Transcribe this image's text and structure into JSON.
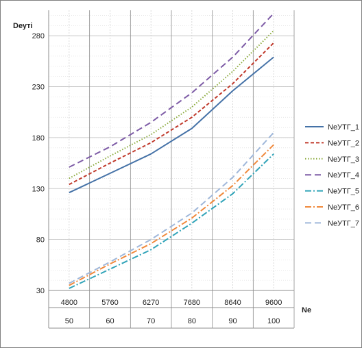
{
  "chart_data": {
    "type": "line",
    "title": "",
    "ylabel": "Dеуті",
    "xlabel": "Ne",
    "x": [
      4800,
      5760,
      6270,
      7680,
      8640,
      9600
    ],
    "x_tick_labels": [
      "4800",
      "5760",
      "6270",
      "7680",
      "8640",
      "9600"
    ],
    "x_secondary_tick_labels": [
      "50",
      "60",
      "70",
      "80",
      "90",
      "100"
    ],
    "ylim": [
      30,
      305
    ],
    "y_ticks": [
      30,
      80,
      130,
      180,
      230,
      280
    ],
    "y_tick_labels": [
      "30",
      "80",
      "130",
      "180",
      "230",
      "280"
    ],
    "grid": true,
    "legend_position": "right",
    "series": [
      {
        "name": "NeУТГ_1",
        "color": "#4572a7",
        "dash": "solid",
        "values": [
          126,
          145,
          164,
          189,
          226,
          259
        ]
      },
      {
        "name": "NeУТГ_2",
        "color": "#c0392b",
        "dash": "dash",
        "values": [
          134,
          155,
          175,
          200,
          233,
          273
        ]
      },
      {
        "name": "NeУТГ_3",
        "color": "#8aaa3c",
        "dash": "dot",
        "values": [
          140,
          162,
          183,
          210,
          245,
          285
        ]
      },
      {
        "name": "NeУТГ_4",
        "color": "#7d5ba6",
        "dash": "longdash",
        "values": [
          151,
          171,
          195,
          224,
          259,
          302
        ]
      },
      {
        "name": "NeУТГ_5",
        "color": "#2fa3b8",
        "dash": "dashdot",
        "values": [
          32,
          51,
          70,
          96,
          125,
          164
        ]
      },
      {
        "name": "NeУТГ_6",
        "color": "#f0883a",
        "dash": "dashdot",
        "values": [
          35,
          56,
          76,
          101,
          133,
          173
        ]
      },
      {
        "name": "NeУТГ_7",
        "color": "#9fb7da",
        "dash": "longdash",
        "values": [
          37,
          58,
          80,
          106,
          141,
          185
        ]
      }
    ]
  }
}
